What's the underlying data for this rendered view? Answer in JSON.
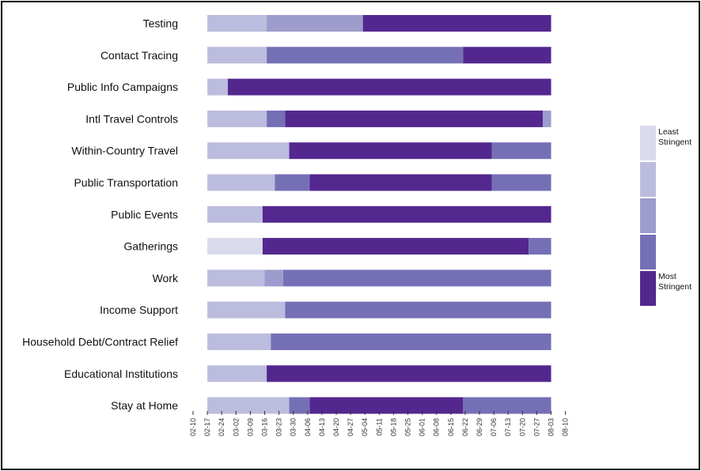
{
  "chart_data": {
    "type": "bar",
    "orientation": "horizontal",
    "subtype": "timeline-stacked",
    "title": "",
    "xlabel": "",
    "ylabel": "",
    "x_ticks": [
      "02-10",
      "02-17",
      "02-24",
      "03-02",
      "03-09",
      "03-16",
      "03-23",
      "03-30",
      "04-06",
      "04-13",
      "04-20",
      "04-27",
      "05-04",
      "05-11",
      "05-18",
      "05-25",
      "06-01",
      "06-08",
      "06-15",
      "06-22",
      "06-29",
      "07-06",
      "07-13",
      "07-20",
      "07-27",
      "08-03",
      "08-10"
    ],
    "xlim": [
      "02-10",
      "08-10"
    ],
    "levels": [
      {
        "level": 0,
        "color": "#dadaec"
      },
      {
        "level": 1,
        "color": "#bcbcde"
      },
      {
        "level": 2,
        "color": "#9e9ccc"
      },
      {
        "level": 3,
        "color": "#7570b6"
      },
      {
        "level": 4,
        "color": "#54278f"
      }
    ],
    "legend": {
      "placement": "right",
      "top_label": "Least Stringent",
      "bottom_label": "Most Stringent"
    },
    "categories": [
      {
        "name": "Testing",
        "segments": [
          [
            "02-17",
            "03-17",
            1
          ],
          [
            "03-17",
            "05-03",
            2
          ],
          [
            "05-03",
            "08-03",
            4
          ]
        ]
      },
      {
        "name": "Contact Tracing",
        "segments": [
          [
            "02-17",
            "03-17",
            1
          ],
          [
            "03-17",
            "06-21",
            3
          ],
          [
            "06-21",
            "08-03",
            4
          ]
        ]
      },
      {
        "name": "Public Info Campaigns",
        "segments": [
          [
            "02-17",
            "02-27",
            1
          ],
          [
            "02-27",
            "08-03",
            4
          ]
        ]
      },
      {
        "name": "Intl Travel Controls",
        "segments": [
          [
            "02-17",
            "03-17",
            1
          ],
          [
            "03-17",
            "03-26",
            3
          ],
          [
            "03-26",
            "07-30",
            4
          ],
          [
            "07-30",
            "08-03",
            2
          ]
        ]
      },
      {
        "name": "Within-Country Travel",
        "segments": [
          [
            "02-17",
            "03-28",
            1
          ],
          [
            "03-28",
            "07-05",
            4
          ],
          [
            "07-05",
            "08-03",
            3
          ]
        ]
      },
      {
        "name": "Public Transportation",
        "segments": [
          [
            "02-17",
            "03-21",
            1
          ],
          [
            "03-21",
            "04-07",
            3
          ],
          [
            "04-07",
            "07-05",
            4
          ],
          [
            "07-05",
            "08-03",
            3
          ]
        ]
      },
      {
        "name": "Public Events",
        "segments": [
          [
            "02-17",
            "03-15",
            1
          ],
          [
            "03-15",
            "08-03",
            4
          ]
        ]
      },
      {
        "name": "Gatherings",
        "segments": [
          [
            "02-17",
            "03-15",
            0
          ],
          [
            "03-15",
            "07-23",
            4
          ],
          [
            "07-23",
            "08-03",
            3
          ]
        ]
      },
      {
        "name": "Work",
        "segments": [
          [
            "02-17",
            "03-16",
            1
          ],
          [
            "03-16",
            "03-25",
            2
          ],
          [
            "03-25",
            "08-03",
            3
          ]
        ]
      },
      {
        "name": "Income Support",
        "segments": [
          [
            "02-17",
            "03-26",
            1
          ],
          [
            "03-26",
            "08-03",
            3
          ]
        ]
      },
      {
        "name": "Household Debt/Contract Relief",
        "segments": [
          [
            "02-17",
            "03-19",
            1
          ],
          [
            "03-19",
            "08-03",
            3
          ]
        ]
      },
      {
        "name": "Educational Institutions",
        "segments": [
          [
            "02-17",
            "03-17",
            1
          ],
          [
            "03-17",
            "08-03",
            4
          ]
        ]
      },
      {
        "name": "Stay at Home",
        "segments": [
          [
            "02-17",
            "03-28",
            1
          ],
          [
            "03-28",
            "04-07",
            3
          ],
          [
            "04-07",
            "06-21",
            4
          ],
          [
            "06-21",
            "08-03",
            3
          ]
        ]
      }
    ]
  }
}
